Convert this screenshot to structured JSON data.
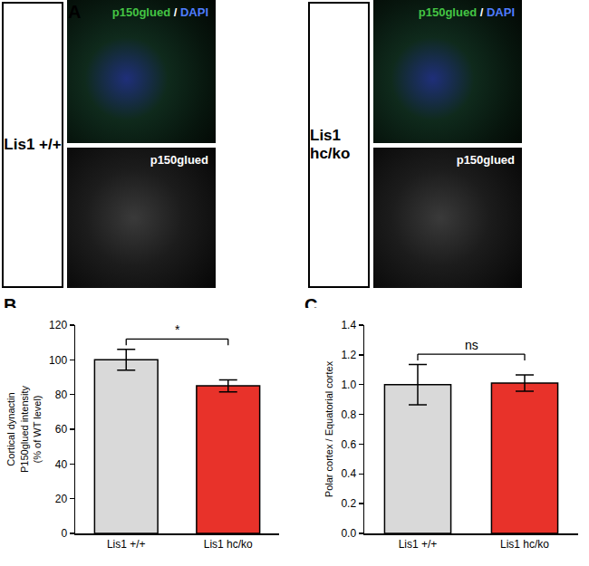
{
  "panel_a": {
    "label": "A",
    "groups": [
      {
        "genotype": "Lis1 +/+",
        "merged_label": [
          {
            "text": "p150glued",
            "color": "#44c544"
          },
          {
            "text": " / ",
            "color": "#ffffff"
          },
          {
            "text": "DAPI",
            "color": "#4f7dff"
          }
        ],
        "gray_label": "p150glued"
      },
      {
        "genotype": "Lis1 hc/ko",
        "merged_label": [
          {
            "text": "p150glued",
            "color": "#44c544"
          },
          {
            "text": " / ",
            "color": "#ffffff"
          },
          {
            "text": "DAPI",
            "color": "#4f7dff"
          }
        ],
        "gray_label": "p150glued"
      }
    ]
  },
  "chart_data": [
    {
      "panel": "B",
      "type": "bar",
      "categories": [
        "Lis1 +/+",
        "Lis1 hc/ko"
      ],
      "values": [
        100,
        85
      ],
      "errors": [
        6,
        3.5
      ],
      "colors": [
        "#d9d9d9",
        "#e8322a"
      ],
      "ylabel": [
        "Cortical dynactin",
        "P150glued intensity",
        "(% of WT level)"
      ],
      "ylim": [
        0,
        120
      ],
      "yticks": [
        0,
        20,
        40,
        60,
        80,
        100,
        120
      ],
      "significance": "*",
      "grid": false
    },
    {
      "panel": "C",
      "type": "bar",
      "categories": [
        "Lis1 +/+",
        "Lis1 hc/ko"
      ],
      "values": [
        1.0,
        1.01
      ],
      "errors": [
        0.135,
        0.055
      ],
      "colors": [
        "#d9d9d9",
        "#e8322a"
      ],
      "ylabel": [
        "Polar cortex / Equatorial cortex"
      ],
      "ylim": [
        0,
        1.4
      ],
      "yticks": [
        {
          "value": 0,
          "label": "0.0"
        },
        0.2,
        0.4,
        0.6,
        0.8,
        {
          "value": 1,
          "label": "1.0"
        },
        1.2,
        1.4
      ],
      "significance": "ns",
      "grid": false
    }
  ]
}
